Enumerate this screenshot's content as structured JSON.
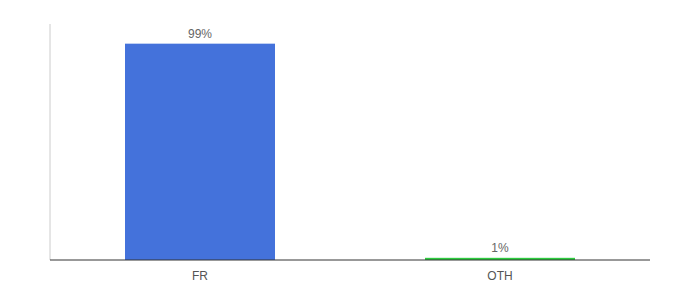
{
  "chart_data": {
    "type": "bar",
    "categories": [
      "FR",
      "OTH"
    ],
    "values": [
      99,
      1
    ],
    "value_labels": [
      "99%",
      "1%"
    ],
    "colors": [
      "#4472db",
      "#2ecc40"
    ],
    "ylim": [
      0,
      108
    ],
    "data_labels": true,
    "tick_labels": "x",
    "grid": false
  }
}
